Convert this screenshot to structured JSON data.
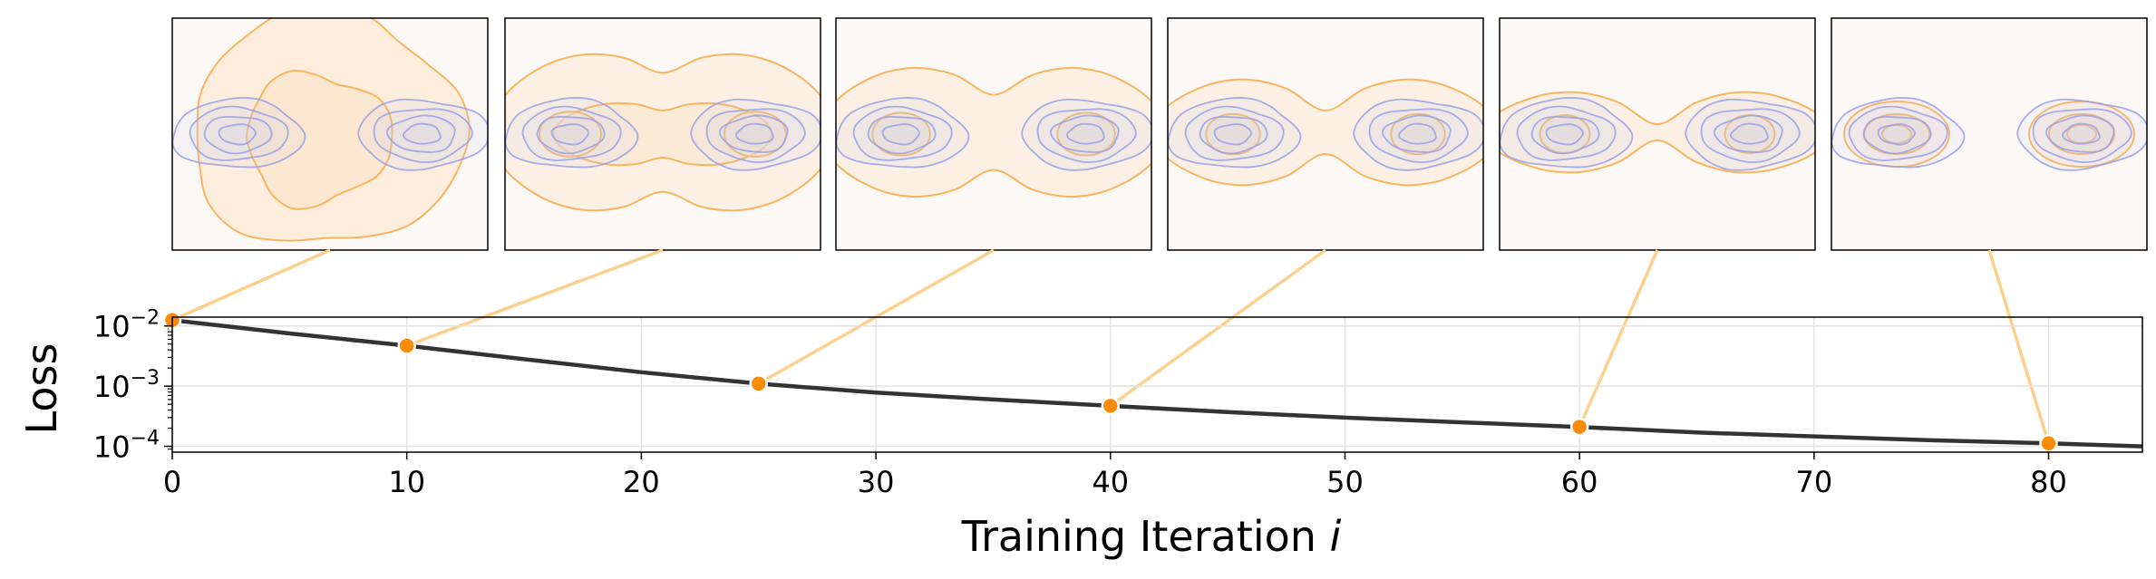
{
  "chart_data": {
    "type": "line",
    "title": "",
    "xlabel": "Training Iteration",
    "xlabel_var": "i",
    "ylabel": "Loss",
    "xlim": [
      0,
      84
    ],
    "ylim": [
      8e-05,
      0.014
    ],
    "yscale": "log",
    "grid": true,
    "x_ticks": [
      0,
      10,
      20,
      30,
      40,
      50,
      60,
      70,
      80
    ],
    "y_ticks": [
      {
        "value": 0.01,
        "base": "10",
        "exp": "−2"
      },
      {
        "value": 0.001,
        "base": "10",
        "exp": "−3"
      },
      {
        "value": 0.0001,
        "base": "10",
        "exp": "−4"
      }
    ],
    "series": [
      {
        "name": "loss",
        "x": [
          0,
          5,
          10,
          15,
          20,
          25,
          30,
          35,
          40,
          45,
          50,
          55,
          60,
          65,
          70,
          75,
          80,
          84
        ],
        "y": [
          0.0125,
          0.0075,
          0.0047,
          0.0028,
          0.0017,
          0.0011,
          0.00078,
          0.0006,
          0.00047,
          0.00037,
          0.0003,
          0.00025,
          0.00021,
          0.00017,
          0.000146,
          0.000126,
          0.000112,
          0.0001
        ]
      }
    ],
    "snapshots": [
      {
        "x": 0,
        "y": 0.0125,
        "stage": 0.0
      },
      {
        "x": 10,
        "y": 0.0047,
        "stage": 0.2
      },
      {
        "x": 25,
        "y": 0.0011,
        "stage": 0.42
      },
      {
        "x": 40,
        "y": 0.00047,
        "stage": 0.62
      },
      {
        "x": 60,
        "y": 0.00021,
        "stage": 0.85
      },
      {
        "x": 80,
        "y": 0.000112,
        "stage": 1.0
      }
    ]
  },
  "colors": {
    "line": "#333333",
    "marker": "#fb8c0a",
    "connector": "#fdd08e",
    "target_contour": "#9aa0e8",
    "model_contour": "#f9b560",
    "model_fill": "#fbe3c8",
    "panel_bg": "#fcf8f6",
    "grid": "#e3e3e3"
  }
}
